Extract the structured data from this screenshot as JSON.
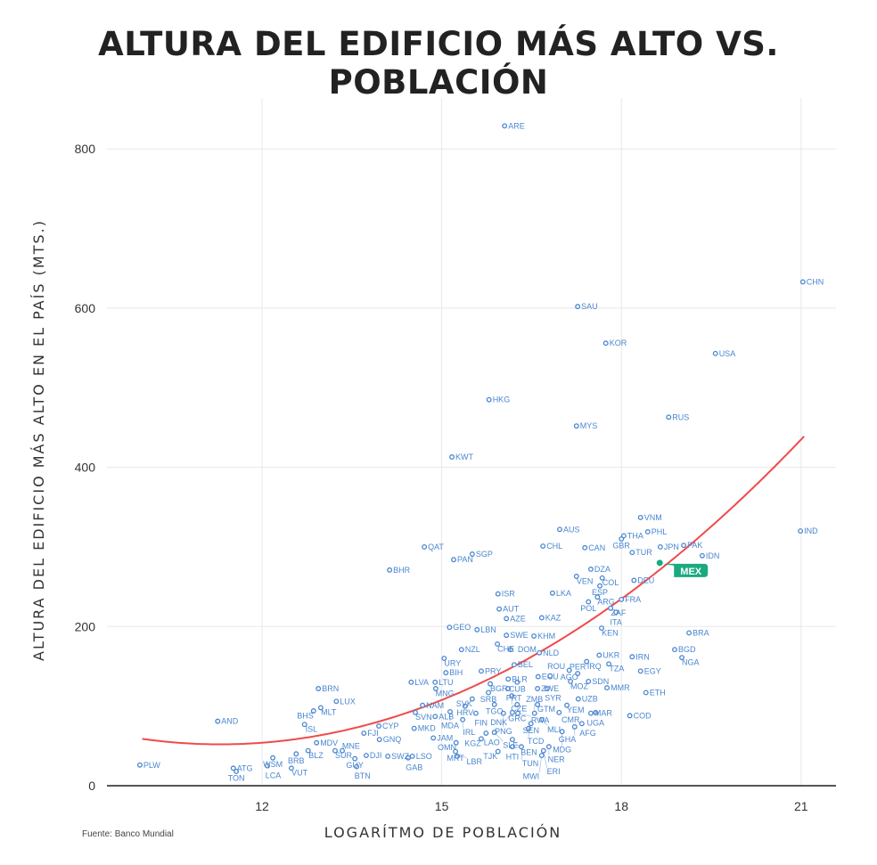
{
  "chart_data": {
    "type": "scatter",
    "title": "ALTURA DEL EDIFICIO MÁS ALTO VS. POBLACIÓN",
    "xlabel": "LOGARÍTMO DE POBLACIÓN",
    "ylabel": "ALTURA DEL EDIFICIO MÁS ALTO EN EL PAÍS (MTS.)",
    "xlim": [
      9.4,
      21.6
    ],
    "ylim": [
      0,
      850
    ],
    "xticks": [
      12,
      15,
      18,
      21
    ],
    "yticks": [
      0,
      200,
      400,
      600,
      800
    ],
    "grid": true,
    "source": "Fuente: Banco Mundial",
    "highlight": {
      "label": "MEX",
      "color": "#1aaa7f"
    },
    "point_color": "#4a86d0",
    "trend": {
      "type": "quadratic",
      "color": "#f04a4a",
      "x_range": [
        10,
        21.05
      ],
      "vertex_x": 11.3,
      "vertex_y": 52,
      "a": 4.07
    },
    "points": [
      [
        "ARE",
        16.05,
        829
      ],
      [
        "CHN",
        21.03,
        633
      ],
      [
        "SAU",
        17.27,
        602
      ],
      [
        "USA",
        19.57,
        543
      ],
      [
        "KOR",
        17.74,
        556
      ],
      [
        "HKG",
        15.79,
        485
      ],
      [
        "RUS",
        18.79,
        463
      ],
      [
        "MYS",
        17.25,
        452
      ],
      [
        "KWT",
        15.17,
        413
      ],
      [
        "VNM",
        18.32,
        337
      ],
      [
        "AUS",
        16.97,
        322
      ],
      [
        "IND",
        20.99,
        320
      ],
      [
        "THA",
        18.04,
        314
      ],
      [
        "GBR",
        18.0,
        310
      ],
      [
        "PHL",
        18.44,
        319
      ],
      [
        "QAT",
        14.71,
        300
      ],
      [
        "CHL",
        16.69,
        301
      ],
      [
        "CAN",
        17.39,
        299
      ],
      [
        "JPN",
        18.65,
        300
      ],
      [
        "PAK",
        19.04,
        302
      ],
      [
        "SGP",
        15.51,
        291
      ],
      [
        "TUR",
        18.18,
        293
      ],
      [
        "PAN",
        15.2,
        284
      ],
      [
        "IDN",
        19.35,
        289
      ],
      [
        "MEX",
        18.64,
        280
      ],
      [
        "BHR",
        14.13,
        271
      ],
      [
        "DZA",
        17.49,
        272
      ],
      [
        "VEN",
        17.25,
        263
      ],
      [
        "COL",
        17.68,
        261
      ],
      [
        "DEU",
        18.21,
        258
      ],
      [
        "ESP",
        17.64,
        251
      ],
      [
        "ISR",
        15.94,
        241
      ],
      [
        "LKA",
        16.85,
        242
      ],
      [
        "ARG",
        17.6,
        237
      ],
      [
        "POL",
        17.45,
        231
      ],
      [
        "FRA",
        18.0,
        234
      ],
      [
        "ZAF",
        17.82,
        223
      ],
      [
        "ITA",
        17.91,
        218
      ],
      [
        "AUT",
        15.96,
        222
      ],
      [
        "AZE",
        16.08,
        210
      ],
      [
        "KAZ",
        16.67,
        211
      ],
      [
        "GEO",
        15.13,
        199
      ],
      [
        "LBN",
        15.59,
        196
      ],
      [
        "KEN",
        17.67,
        198
      ],
      [
        "BRA",
        19.13,
        192
      ],
      [
        "SWE",
        16.08,
        189
      ],
      [
        "KHM",
        16.54,
        188
      ],
      [
        "CHE",
        15.93,
        178
      ],
      [
        "DOM",
        16.15,
        171
      ],
      [
        "NZL",
        15.33,
        171
      ],
      [
        "BGD",
        18.89,
        171
      ],
      [
        "NGA",
        19.01,
        161
      ],
      [
        "NLD",
        16.63,
        167
      ],
      [
        "URY",
        15.04,
        160
      ],
      [
        "IRN",
        18.18,
        162
      ],
      [
        "UKR",
        17.63,
        164
      ],
      [
        "IRQ",
        17.42,
        156
      ],
      [
        "TZA",
        17.79,
        153
      ],
      [
        "BEL",
        16.21,
        152
      ],
      [
        "BIH",
        15.07,
        142
      ],
      [
        "PRY",
        15.66,
        144
      ],
      [
        "AGO",
        17.13,
        145
      ],
      [
        "PER",
        17.27,
        141
      ],
      [
        "EGY",
        18.32,
        144
      ],
      [
        "ECU",
        16.61,
        137
      ],
      [
        "ROU",
        16.81,
        138
      ],
      [
        "BLR",
        16.11,
        134
      ],
      [
        "CUB",
        16.26,
        130
      ],
      [
        "MOZ",
        17.15,
        131
      ],
      [
        "SDN",
        17.45,
        131
      ],
      [
        "LVA",
        14.49,
        130
      ],
      [
        "LTU",
        14.89,
        130
      ],
      [
        "MNG",
        14.9,
        122
      ],
      [
        "MMR",
        17.76,
        123
      ],
      [
        "BGR",
        15.81,
        128
      ],
      [
        "ETH",
        18.41,
        117
      ],
      [
        "SRB",
        15.78,
        117
      ],
      [
        "PRT",
        16.11,
        122
      ],
      [
        "ZWE",
        16.6,
        122
      ],
      [
        "SYR",
        16.76,
        122
      ],
      [
        "CZE",
        16.17,
        113
      ],
      [
        "NAM",
        14.68,
        101
      ],
      [
        "UZB",
        17.28,
        109
      ],
      [
        "BRN",
        12.94,
        122
      ],
      [
        "LUX",
        13.24,
        106
      ],
      [
        "MLT",
        12.98,
        98
      ],
      [
        "BHS",
        12.86,
        94
      ],
      [
        "SVK",
        15.51,
        109
      ],
      [
        "GRC",
        16.26,
        102
      ],
      [
        "HRV",
        15.39,
        100
      ],
      [
        "TGO",
        15.88,
        102
      ],
      [
        "GTM",
        16.6,
        102
      ],
      [
        "YEM",
        17.09,
        101
      ],
      [
        "DNK",
        16.18,
        92
      ],
      [
        "FIN",
        15.57,
        91
      ],
      [
        "PNG",
        16.03,
        91
      ],
      [
        "RWA",
        16.27,
        91
      ],
      [
        "ZMB",
        16.55,
        91
      ],
      [
        "CMR",
        16.96,
        92
      ],
      [
        "MAR",
        17.49,
        91
      ],
      [
        "UGA",
        17.57,
        92
      ],
      [
        "COD",
        18.14,
        88
      ],
      [
        "SVN",
        14.56,
        92
      ],
      [
        "ALB",
        14.89,
        87
      ],
      [
        "MDA",
        15.14,
        93
      ],
      [
        "ISL",
        12.71,
        77
      ],
      [
        "AND",
        11.26,
        81
      ],
      [
        "CYP",
        13.95,
        75
      ],
      [
        "IRL",
        15.35,
        83
      ],
      [
        "SEN",
        16.49,
        78
      ],
      [
        "MLI",
        16.67,
        83
      ],
      [
        "AFG",
        17.34,
        78
      ],
      [
        "TCD",
        16.45,
        72
      ],
      [
        "GHA",
        17.22,
        74
      ],
      [
        "MDG",
        17.01,
        68
      ],
      [
        "MKD",
        14.54,
        72
      ],
      [
        "JAM",
        14.86,
        60
      ],
      [
        "FJI",
        13.7,
        66
      ],
      [
        "GNQ",
        13.96,
        58
      ],
      [
        "LAO",
        15.74,
        66
      ],
      [
        "SLE",
        15.88,
        67
      ],
      [
        "KGZ",
        15.66,
        59
      ],
      [
        "OMN",
        15.24,
        54
      ],
      [
        "BEN",
        16.18,
        58
      ],
      [
        "HTI",
        16.18,
        49
      ],
      [
        "TUN",
        16.33,
        49
      ],
      [
        "NER",
        16.79,
        49
      ],
      [
        "MDV",
        12.91,
        54
      ],
      [
        "BLZ",
        12.77,
        44
      ],
      [
        "BRB",
        12.57,
        40
      ],
      [
        "SUR",
        13.22,
        44
      ],
      [
        "MNE",
        13.34,
        44
      ],
      [
        "MRT",
        15.23,
        43
      ],
      [
        "TJK",
        15.94,
        43
      ],
      [
        "WSM",
        12.18,
        35
      ],
      [
        "DJI",
        13.74,
        38
      ],
      [
        "SWZ",
        14.1,
        37
      ],
      [
        "LSO",
        14.51,
        37
      ],
      [
        "GAB",
        14.44,
        35
      ],
      [
        "LBR",
        15.26,
        37
      ],
      [
        "ERI",
        16.7,
        44
      ],
      [
        "MWI",
        16.67,
        38
      ],
      [
        "GUY",
        13.55,
        34
      ],
      [
        "LCA",
        12.09,
        25
      ],
      [
        "VUT",
        12.49,
        22
      ],
      [
        "BTN",
        13.58,
        24
      ],
      [
        "PLW",
        9.96,
        26
      ],
      [
        "ATG",
        11.52,
        22
      ],
      [
        "TON",
        11.57,
        18
      ]
    ]
  }
}
